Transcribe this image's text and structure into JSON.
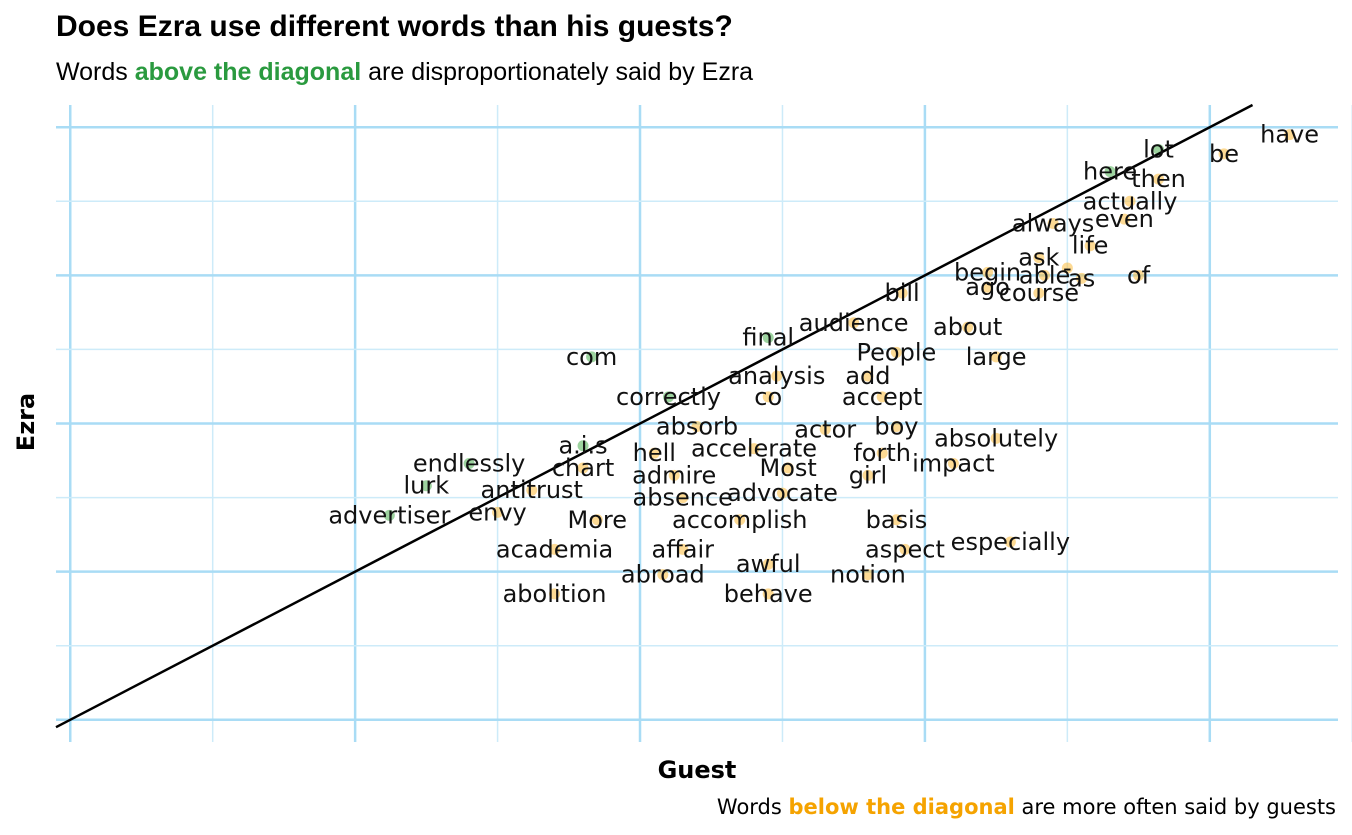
{
  "title": "Does Ezra use different words than his guests?",
  "subtitle": {
    "pre": "Words ",
    "highlight": "above the diagonal",
    "post": " are disproportionately said by Ezra"
  },
  "caption": {
    "pre": "Words ",
    "highlight": "below the diagonal",
    "post": " are more often said by guests"
  },
  "colors": {
    "above": "#4caf50",
    "below": "#fbbc3d",
    "grid_major": "#a9dcf5",
    "grid_minor": "#cdebf9",
    "diagonal": "#000000"
  },
  "chart_data": {
    "type": "scatter",
    "scale": "log",
    "xlabel": "Guest",
    "ylabel": "Ezra",
    "xlim": [
      -6.05,
      -1.55
    ],
    "ylim": [
      -6.15,
      -1.85
    ],
    "reference_line": "y = x",
    "grid": true,
    "labeled_words": [
      {
        "word": "have",
        "x": -1.72,
        "y": -2.05
      },
      {
        "word": "be",
        "x": -1.95,
        "y": -2.18
      },
      {
        "word": "lot",
        "x": -2.18,
        "y": -2.15
      },
      {
        "word": "then",
        "x": -2.18,
        "y": -2.35
      },
      {
        "word": "here",
        "x": -2.35,
        "y": -2.3
      },
      {
        "word": "actually",
        "x": -2.28,
        "y": -2.5
      },
      {
        "word": "even",
        "x": -2.3,
        "y": -2.62
      },
      {
        "word": "always",
        "x": -2.55,
        "y": -2.65
      },
      {
        "word": "life",
        "x": -2.42,
        "y": -2.8
      },
      {
        "word": "ask",
        "x": -2.6,
        "y": -2.88
      },
      {
        "word": "-",
        "x": -2.5,
        "y": -2.95
      },
      {
        "word": "of",
        "x": -2.25,
        "y": -3.0
      },
      {
        "word": "as",
        "x": -2.45,
        "y": -3.02
      },
      {
        "word": "able",
        "x": -2.58,
        "y": -3.0
      },
      {
        "word": "begin",
        "x": -2.78,
        "y": -2.98
      },
      {
        "word": "ago",
        "x": -2.78,
        "y": -3.08
      },
      {
        "word": "course",
        "x": -2.6,
        "y": -3.12
      },
      {
        "word": "bill",
        "x": -3.08,
        "y": -3.12
      },
      {
        "word": "audience",
        "x": -3.25,
        "y": -3.32
      },
      {
        "word": "about",
        "x": -2.85,
        "y": -3.35
      },
      {
        "word": "final",
        "x": -3.55,
        "y": -3.42
      },
      {
        "word": "People",
        "x": -3.1,
        "y": -3.52
      },
      {
        "word": "large",
        "x": -2.75,
        "y": -3.55
      },
      {
        "word": "com",
        "x": -4.17,
        "y": -3.55
      },
      {
        "word": "analysis",
        "x": -3.52,
        "y": -3.68
      },
      {
        "word": "add",
        "x": -3.2,
        "y": -3.68
      },
      {
        "word": "correctly",
        "x": -3.9,
        "y": -3.82
      },
      {
        "word": "co",
        "x": -3.55,
        "y": -3.82
      },
      {
        "word": "accept",
        "x": -3.15,
        "y": -3.82
      },
      {
        "word": "absorb",
        "x": -3.8,
        "y": -4.02
      },
      {
        "word": "actor",
        "x": -3.35,
        "y": -4.04
      },
      {
        "word": "boy",
        "x": -3.1,
        "y": -4.02
      },
      {
        "word": "absolutely",
        "x": -2.75,
        "y": -4.1
      },
      {
        "word": "a.i.s",
        "x": -4.2,
        "y": -4.15
      },
      {
        "word": "hell",
        "x": -3.95,
        "y": -4.2
      },
      {
        "word": "accelerate",
        "x": -3.6,
        "y": -4.17
      },
      {
        "word": "forth",
        "x": -3.15,
        "y": -4.2
      },
      {
        "word": "impact",
        "x": -2.9,
        "y": -4.27
      },
      {
        "word": "endlessly",
        "x": -4.6,
        "y": -4.27
      },
      {
        "word": "chart",
        "x": -4.2,
        "y": -4.3
      },
      {
        "word": "admire",
        "x": -3.88,
        "y": -4.35
      },
      {
        "word": "Most",
        "x": -3.48,
        "y": -4.3
      },
      {
        "word": "girl",
        "x": -3.2,
        "y": -4.35
      },
      {
        "word": "lurk",
        "x": -4.75,
        "y": -4.42
      },
      {
        "word": "antitrust",
        "x": -4.38,
        "y": -4.45
      },
      {
        "word": "absence",
        "x": -3.85,
        "y": -4.5
      },
      {
        "word": "advocate",
        "x": -3.5,
        "y": -4.47
      },
      {
        "word": "advertiser",
        "x": -4.88,
        "y": -4.62
      },
      {
        "word": "envy",
        "x": -4.5,
        "y": -4.6
      },
      {
        "word": "More",
        "x": -4.15,
        "y": -4.65
      },
      {
        "word": "accomplish",
        "x": -3.65,
        "y": -4.65
      },
      {
        "word": "basis",
        "x": -3.1,
        "y": -4.65
      },
      {
        "word": "academia",
        "x": -4.3,
        "y": -4.85
      },
      {
        "word": "affair",
        "x": -3.85,
        "y": -4.85
      },
      {
        "word": "aspect",
        "x": -3.07,
        "y": -4.85
      },
      {
        "word": "especially",
        "x": -2.7,
        "y": -4.8
      },
      {
        "word": "abroad",
        "x": -3.92,
        "y": -5.02
      },
      {
        "word": "awful",
        "x": -3.55,
        "y": -4.95
      },
      {
        "word": "notion",
        "x": -3.2,
        "y": -5.02
      },
      {
        "word": "abolition",
        "x": -4.3,
        "y": -5.15
      },
      {
        "word": "behave",
        "x": -3.55,
        "y": -5.15
      }
    ]
  }
}
